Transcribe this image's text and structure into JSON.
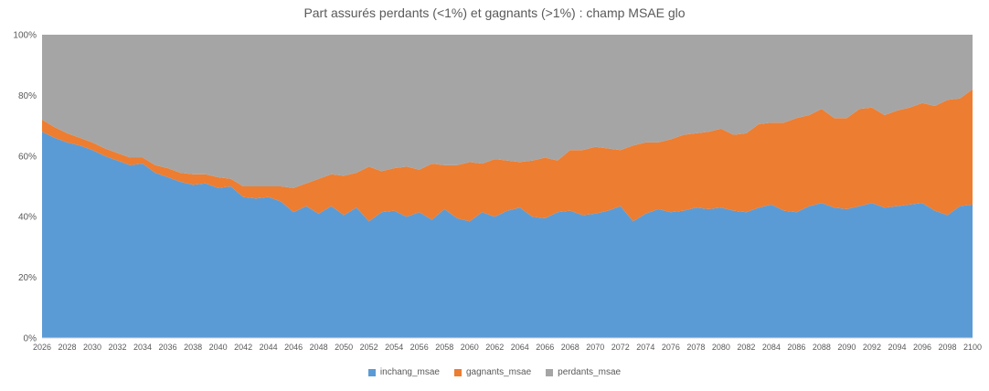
{
  "chart_data": {
    "type": "area",
    "stacked": true,
    "percent_stacked": true,
    "title": "Part assurés perdants (<1%) et gagnants (>1%) : champ MSAE glo",
    "text_color": "#595959",
    "gridlines": false,
    "legend_position": "bottom",
    "ylim": [
      0,
      100
    ],
    "yticks": [
      "0%",
      "20%",
      "40%",
      "60%",
      "80%",
      "100%"
    ],
    "xtick_step": 2,
    "x": [
      2026,
      2027,
      2028,
      2029,
      2030,
      2031,
      2032,
      2033,
      2034,
      2035,
      2036,
      2037,
      2038,
      2039,
      2040,
      2041,
      2042,
      2043,
      2044,
      2045,
      2046,
      2047,
      2048,
      2049,
      2050,
      2051,
      2052,
      2053,
      2054,
      2055,
      2056,
      2057,
      2058,
      2059,
      2060,
      2061,
      2062,
      2063,
      2064,
      2065,
      2066,
      2067,
      2068,
      2069,
      2070,
      2071,
      2072,
      2073,
      2074,
      2075,
      2076,
      2077,
      2078,
      2079,
      2080,
      2081,
      2082,
      2083,
      2084,
      2085,
      2086,
      2087,
      2088,
      2089,
      2090,
      2091,
      2092,
      2093,
      2094,
      2095,
      2096,
      2097,
      2098,
      2099,
      2100
    ],
    "series": [
      {
        "name": "inchang_msae",
        "color": "#5B9BD5",
        "values": [
          68,
          66,
          64.5,
          63.5,
          62,
          60,
          58.5,
          57,
          57.5,
          54.5,
          53,
          51.5,
          50.5,
          51,
          49.5,
          50,
          46.5,
          46,
          46.5,
          45,
          41.5,
          43.5,
          41,
          43.5,
          40.5,
          43,
          38.5,
          41.5,
          42,
          40,
          41.5,
          39,
          42.5,
          39.5,
          38.5,
          41.5,
          40,
          42,
          43,
          40,
          39.5,
          41.5,
          42,
          40.5,
          41,
          42,
          43.5,
          38.5,
          41,
          42.5,
          41.5,
          42,
          43,
          42.5,
          43,
          42,
          41.5,
          43,
          44,
          42,
          41.5,
          43.5,
          44.5,
          43,
          42.5,
          43.5,
          44.5,
          43,
          43.5,
          44,
          44.5,
          42,
          40.5,
          43.5,
          44
        ]
      },
      {
        "name": "gagnants_msae",
        "color": "#ED7D31",
        "values": [
          4,
          3.5,
          3,
          2.5,
          2.5,
          2.5,
          2.5,
          2.5,
          2,
          2.5,
          3,
          3,
          3.5,
          3,
          3.5,
          2.5,
          3.5,
          4,
          3.5,
          5,
          8,
          7.5,
          11.5,
          10.5,
          13,
          11.5,
          18,
          13.5,
          14,
          16.5,
          14,
          18.5,
          14.5,
          17.5,
          19.5,
          16,
          19,
          16.5,
          15,
          18.5,
          20,
          17,
          20,
          21.5,
          22,
          20.5,
          18.5,
          25,
          23.5,
          22,
          24,
          25,
          24.5,
          25.5,
          26,
          25,
          26,
          27.5,
          27,
          29,
          31,
          30,
          31,
          29.5,
          30,
          32,
          31.5,
          30.5,
          31.5,
          32,
          33,
          34.5,
          38,
          35.5,
          38
        ]
      },
      {
        "name": "perdants_msae",
        "color": "#A5A5A5",
        "values": [
          28,
          30.5,
          32.5,
          34,
          35.5,
          37.5,
          39,
          40.5,
          40.5,
          43,
          44,
          45.5,
          46,
          46,
          47,
          47.5,
          50,
          50,
          50,
          50,
          50.5,
          49,
          47.5,
          46,
          46.5,
          45.5,
          43.5,
          45,
          44,
          43.5,
          44.5,
          42.5,
          43,
          43,
          42,
          42.5,
          41,
          41.5,
          42,
          41.5,
          40.5,
          41.5,
          38,
          38,
          37,
          37.5,
          38,
          36.5,
          35.5,
          35.5,
          34.5,
          33,
          32.5,
          32,
          31,
          33,
          32.5,
          29.5,
          29,
          29,
          27.5,
          26.5,
          24.5,
          27.5,
          27.5,
          24.5,
          24,
          26.5,
          25,
          24,
          22.5,
          23.5,
          21.5,
          21,
          18
        ]
      }
    ]
  }
}
